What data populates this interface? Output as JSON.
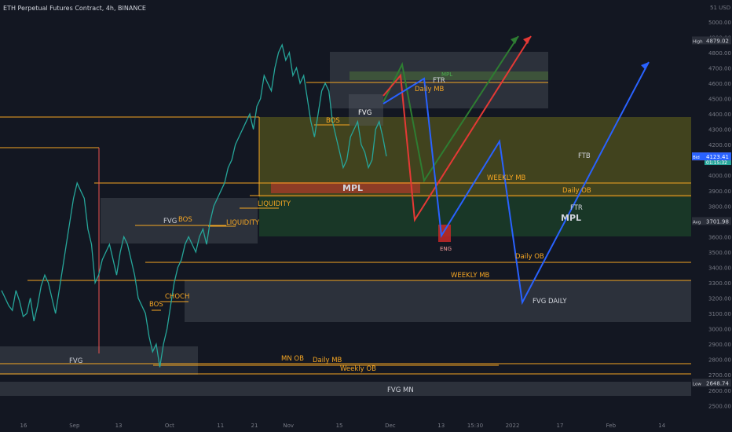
{
  "header": {
    "title": "ETH Perpetual Futures Contract, 4h, BINANCE"
  },
  "price_axis": {
    "currency": "51 USD ▾",
    "ticks": [
      "5000.00",
      "4900.00",
      "4800.00",
      "4700.00",
      "4600.00",
      "4500.00",
      "4400.00",
      "4300.00",
      "4200.00",
      "4100.00",
      "4000.00",
      "3900.00",
      "3800.00",
      "3700.00",
      "3600.00",
      "3500.00",
      "3400.00",
      "3300.00",
      "3200.00",
      "3100.00",
      "3000.00",
      "2900.00",
      "2800.00",
      "2700.00",
      "2600.00",
      "2500.00"
    ],
    "tick_values": [
      5000,
      4900,
      4800,
      4700,
      4600,
      4500,
      4400,
      4300,
      4200,
      4100,
      4000,
      3900,
      3800,
      3700,
      3600,
      3500,
      3400,
      3300,
      3200,
      3100,
      3000,
      2900,
      2800,
      2700,
      2600,
      2500
    ],
    "high": {
      "label": "High",
      "value": "4879.02",
      "y": 4879.02
    },
    "ticker": {
      "label": "ETHPERP",
      "value": "4123.72",
      "sub": "01:15:32",
      "y": 4123.72
    },
    "ask": {
      "label": "Ask",
      "value": "4123.42",
      "y": 4123.42
    },
    "bid": {
      "label": "Bid",
      "value": "4123.41",
      "y": 4123.41
    },
    "avg": {
      "label": "Avg",
      "value": "3701.98",
      "y": 3701.98
    },
    "low": {
      "label": "Low",
      "value": "2648.74",
      "y": 2648.74
    }
  },
  "time_axis": {
    "labels": [
      "16",
      "Sep",
      "13",
      "Oct",
      "11",
      "21",
      "Nov",
      "15",
      "Dec",
      "13",
      "15:30",
      "2022",
      "17",
      "Feb",
      "14"
    ],
    "x": [
      0,
      15,
      28,
      43,
      58,
      68,
      78,
      93,
      108,
      123,
      133,
      144,
      158,
      173,
      188
    ]
  },
  "chart_data": {
    "type": "line",
    "title": "ETH Perpetual Futures Contract, 4h, BINANCE",
    "xlabel": "",
    "ylabel": "",
    "x": [
      0,
      1,
      2,
      3,
      4,
      5,
      6,
      7,
      8,
      9,
      10,
      11,
      12,
      13,
      14,
      15,
      16,
      17,
      18,
      19,
      20,
      21,
      22,
      23,
      24,
      25,
      26,
      27,
      28,
      29,
      30,
      31,
      32,
      33,
      34,
      35,
      36,
      37,
      38,
      39,
      40,
      41,
      42,
      43,
      44,
      45,
      46,
      47,
      48,
      49,
      50,
      51,
      52,
      53,
      54,
      55,
      56,
      57,
      58,
      59,
      60,
      61,
      62,
      63,
      64,
      65,
      66,
      67,
      68,
      69,
      70,
      71,
      72,
      73,
      74,
      75,
      76,
      77,
      78,
      79,
      80,
      81,
      82,
      83,
      84,
      85,
      86,
      87,
      88,
      89,
      90,
      91,
      92,
      93,
      94,
      95,
      96,
      97,
      98,
      99,
      100,
      101,
      102,
      103,
      104,
      105,
      106,
      107
    ],
    "close": [
      3250,
      3200,
      3150,
      3120,
      3250,
      3180,
      3080,
      3100,
      3200,
      3050,
      3150,
      3280,
      3350,
      3300,
      3200,
      3100,
      3250,
      3400,
      3550,
      3700,
      3850,
      3950,
      3900,
      3850,
      3650,
      3550,
      3300,
      3350,
      3450,
      3500,
      3550,
      3450,
      3350,
      3500,
      3600,
      3550,
      3450,
      3350,
      3200,
      3150,
      3100,
      2950,
      2850,
      2900,
      2750,
      2900,
      3000,
      3150,
      3300,
      3400,
      3450,
      3550,
      3600,
      3550,
      3500,
      3600,
      3650,
      3550,
      3700,
      3800,
      3850,
      3900,
      3950,
      4050,
      4100,
      4200,
      4250,
      4300,
      4350,
      4400,
      4300,
      4450,
      4500,
      4650,
      4600,
      4550,
      4700,
      4800,
      4850,
      4750,
      4800,
      4650,
      4700,
      4600,
      4650,
      4500,
      4350,
      4250,
      4400,
      4550,
      4600,
      4550,
      4350,
      4250,
      4150,
      4050,
      4100,
      4250,
      4300,
      4350,
      4200,
      4150,
      4050,
      4100,
      4300,
      4350,
      4250,
      4123.72
    ],
    "ylim": [
      2430,
      5040
    ],
    "grid": false,
    "legend": "none"
  },
  "levels": [
    {
      "label": "WEEKLY MB",
      "y": 3915
    },
    {
      "label": "Daily OB",
      "y": 3870
    },
    {
      "label": "Daily OB",
      "y": 3440
    },
    {
      "label": "WEEKLY MB",
      "y": 3310
    },
    {
      "label": "MN OB",
      "y": 2765
    },
    {
      "label": "Daily MB",
      "y": 2750
    },
    {
      "label": "Weekly OB",
      "y": 2710
    }
  ],
  "annotations": {
    "fvg1": "FVG",
    "bos1": "BOS",
    "liquidity1": "LIQUIDITY",
    "liquidity2": "LIQUIDITY",
    "fvg2": "FVG",
    "bos2": "BOS",
    "choch": "CHOCH",
    "bos3": "BOS",
    "fvg3": "FVG",
    "mpl1": "MPL",
    "ftr1": "FTR",
    "daily_mb": "Daily MB",
    "mpl_small": "MPL",
    "weekly_mb": "WEEKLY MB",
    "daily_ob_a": "Daily OB",
    "ftr2": "FTR",
    "mpl2": "MPL",
    "ftb": "FTB",
    "eng": "ENG",
    "daily_ob_b": "Daily OB",
    "weekly_mb_b": "WEEKLY MB",
    "fvg_daily": "FVG DAILY",
    "mn_ob": "MN OB",
    "daily_mb_b": "Daily MB",
    "weekly_ob": "Weekly OB",
    "fvg_mn": "FVG MN"
  },
  "colors": {
    "orange": "#f5a623",
    "bull": "#26a69a",
    "bear": "#ef5350",
    "blue": "#2962ff",
    "green": "#2e7d32",
    "red": "#e53935"
  }
}
